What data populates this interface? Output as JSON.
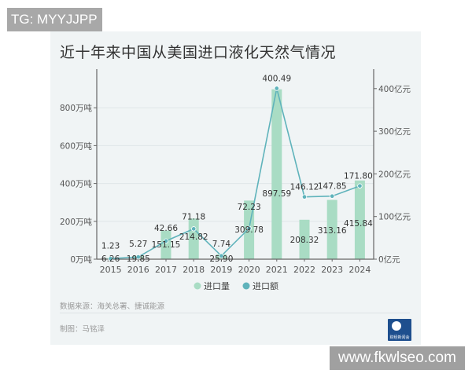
{
  "watermarks": {
    "top": "TG: MYYJJPP",
    "bottom": "www.fkwlseo.com"
  },
  "title": "近十年来中国从美国进口液化天然气情况",
  "footer": {
    "source": "数据来源：海关总署、捷诚能源",
    "maker": "制图：马铭泽",
    "logo_text": "财经新闻会"
  },
  "colors": {
    "card_bg": "#f0f4f5",
    "bar": "#a9dcc4",
    "line": "#5fb3bb",
    "axis": "#666666",
    "grid": "#e0e6e8",
    "text": "#333333"
  },
  "chart_data": {
    "type": "bar+line",
    "title": "近十年来中国从美国进口液化天然气情况",
    "categories": [
      "2015",
      "2016",
      "2017",
      "2018",
      "2019",
      "2020",
      "2021",
      "2022",
      "2023",
      "2024"
    ],
    "series": [
      {
        "name": "进口量",
        "type": "bar",
        "axis": "left",
        "unit": "万吨",
        "values": [
          6.26,
          19.85,
          151.15,
          214.82,
          25.9,
          309.78,
          897.59,
          208.32,
          313.16,
          415.84
        ],
        "labels": [
          "6.26",
          "19.85",
          "151.15",
          "214.82",
          "25.90",
          "309.78",
          "897.59",
          "208.32",
          "313.16",
          "415.84"
        ]
      },
      {
        "name": "进口额",
        "type": "line",
        "axis": "right",
        "unit": "亿元",
        "values": [
          1.23,
          5.27,
          42.66,
          71.18,
          7.74,
          72.23,
          400.49,
          146.12,
          147.85,
          171.8
        ],
        "labels": [
          "1.23",
          "5.27",
          "42.66",
          "71.18",
          "7.74",
          "72.23",
          "400.49",
          "146.12",
          "147.85",
          "171.80"
        ]
      }
    ],
    "left_axis": {
      "ticks": [
        "0万吨",
        "200万吨",
        "400万吨",
        "600万吨",
        "800万吨"
      ],
      "tick_values": [
        0,
        200,
        400,
        600,
        800
      ],
      "ylim": [
        0,
        900
      ]
    },
    "right_axis": {
      "ticks": [
        "0亿元",
        "100亿元",
        "200亿元",
        "300亿元",
        "400亿元"
      ],
      "tick_values": [
        0,
        100,
        200,
        300,
        400
      ],
      "ylim": [
        0,
        400
      ]
    },
    "legend": [
      "进口量",
      "进口额"
    ],
    "legend_position": "bottom-right",
    "grid": true
  }
}
